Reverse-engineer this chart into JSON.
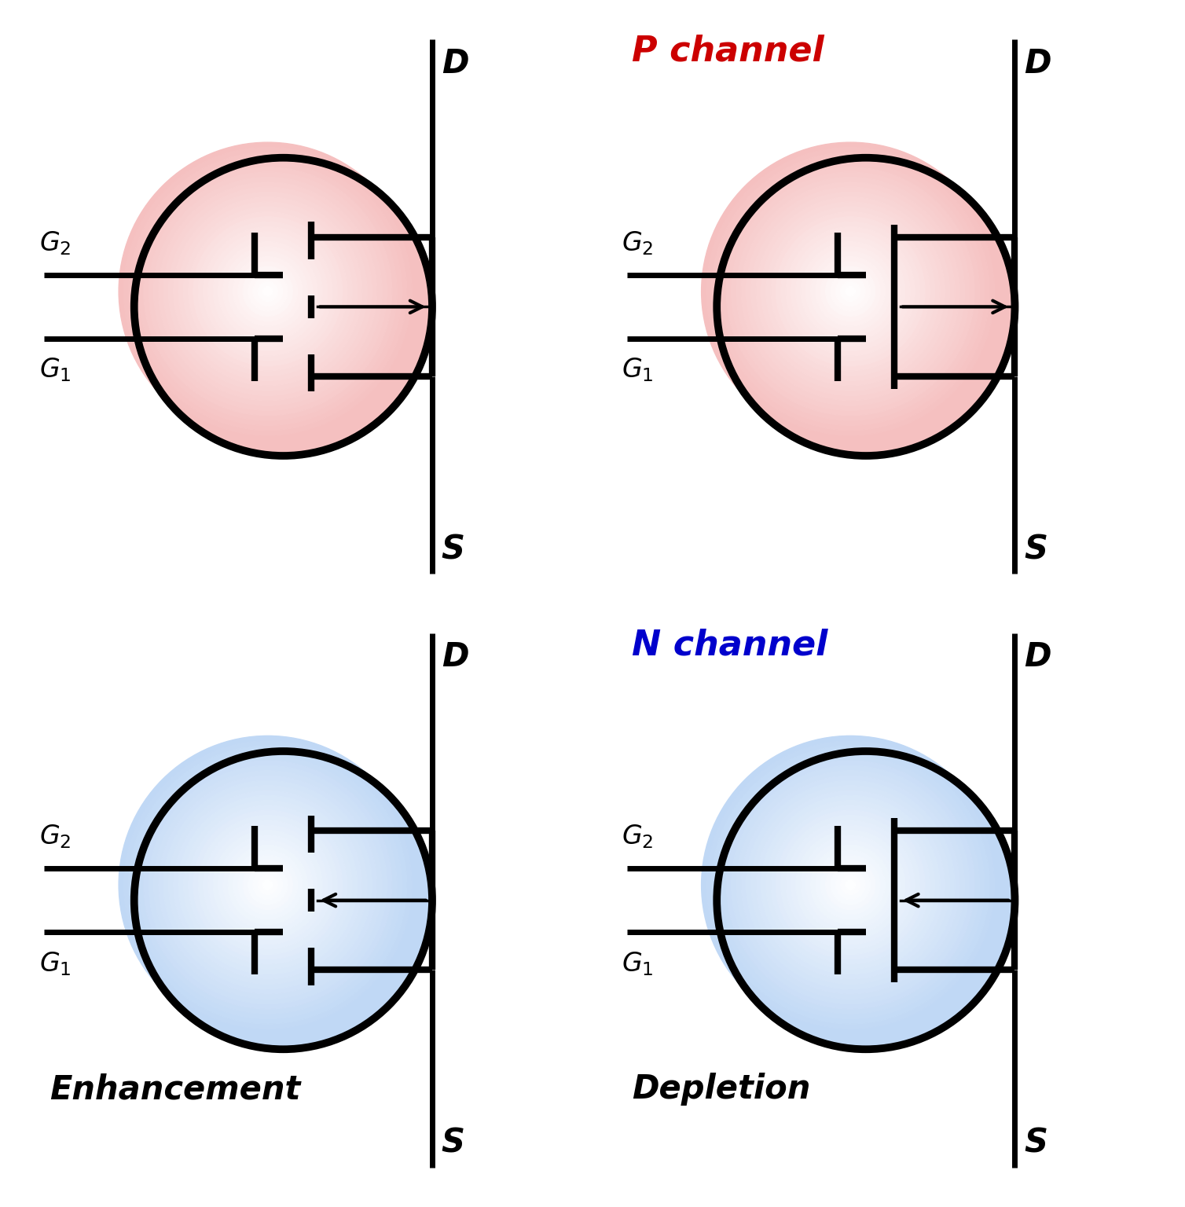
{
  "bg_color": "#ffffff",
  "p_channel_color": "#f5c0c0",
  "p_gradient_inner": "#ffffff",
  "n_channel_color": "#c0d8f5",
  "n_gradient_inner": "#ffffff",
  "circle_edge_color": "#000000",
  "circle_lw": 7,
  "symbol_lw": 6,
  "gate_lw": 6,
  "arrow_lw": 3,
  "label_P_channel": "P channel",
  "label_P_channel_color": "#cc0000",
  "label_N_channel": "N channel",
  "label_N_channel_color": "#0000cc",
  "label_Enhancement": "Enhancement",
  "label_Depletion": "Depletion",
  "label_color": "#000000",
  "D_label": "D",
  "S_label": "S",
  "font_size_DS": 30,
  "font_size_G": 24,
  "font_size_channel": 32,
  "font_size_type": 30
}
